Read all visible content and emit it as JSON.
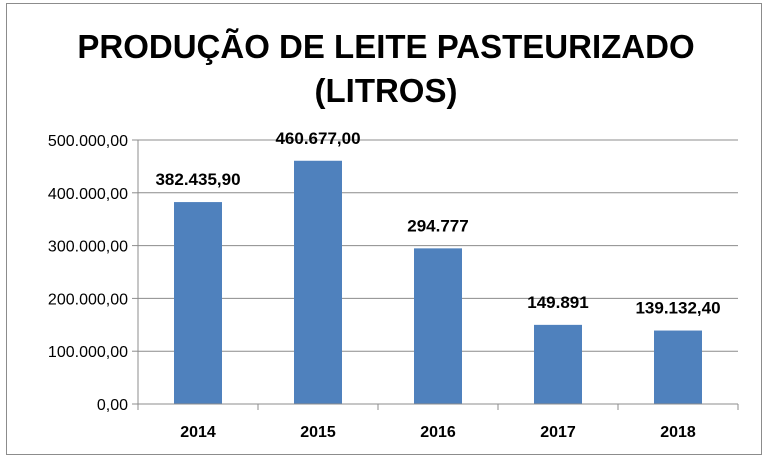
{
  "chart_data": {
    "type": "bar",
    "title_lines": [
      "PRODUÇÃO DE LEITE PASTEURIZADO",
      "(LITROS)"
    ],
    "categories": [
      "2014",
      "2015",
      "2016",
      "2017",
      "2018"
    ],
    "values": [
      382435.9,
      460677.0,
      294777,
      149891,
      139132.4
    ],
    "data_labels": [
      "382.435,90",
      "460.677,00",
      "294.777",
      "149.891",
      "139.132,40"
    ],
    "y_ticks": [
      0,
      100000,
      200000,
      300000,
      400000,
      500000
    ],
    "y_tick_labels": [
      "0,00",
      "100.000,00",
      "200.000,00",
      "300.000,00",
      "400.000,00",
      "500.000,00"
    ],
    "ylim": [
      0,
      500000
    ],
    "grid": true,
    "legend": "none",
    "bar_color": "#4f81bd"
  }
}
